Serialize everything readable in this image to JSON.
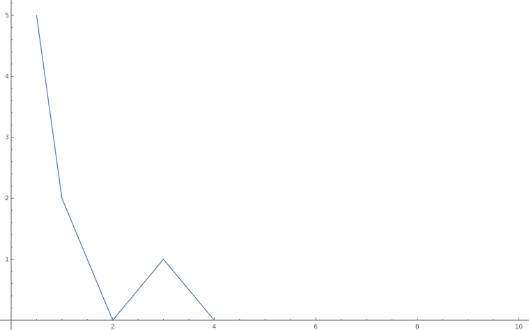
{
  "chart_data": {
    "type": "line",
    "title": "",
    "xlabel": "",
    "ylabel": "",
    "xlim": [
      0,
      10.2
    ],
    "ylim": [
      0,
      5.25
    ],
    "x_major_ticks": [
      2,
      4,
      6,
      8,
      10
    ],
    "x_minor_ticks": [
      0.5,
      1,
      1.5,
      2.5,
      3,
      3.5,
      4.5,
      5,
      5.5,
      6.5,
      7,
      7.5,
      8.5,
      9,
      9.5
    ],
    "y_major_ticks": [
      1,
      2,
      3,
      4,
      5
    ],
    "y_minor_ticks": [
      0.2,
      0.4,
      0.6,
      0.8,
      1.2,
      1.4,
      1.6,
      1.8,
      2.2,
      2.4,
      2.6,
      2.8,
      3.2,
      3.4,
      3.6,
      3.8,
      4.2,
      4.4,
      4.6,
      4.8,
      5.2
    ],
    "grid": false,
    "legend": "none",
    "colors": {
      "series": "#5e81b5",
      "axis": "#555555"
    },
    "series": [
      {
        "x": [
          0.5,
          1,
          2,
          3,
          4
        ],
        "y": [
          5,
          2,
          0,
          1,
          0
        ]
      }
    ]
  }
}
